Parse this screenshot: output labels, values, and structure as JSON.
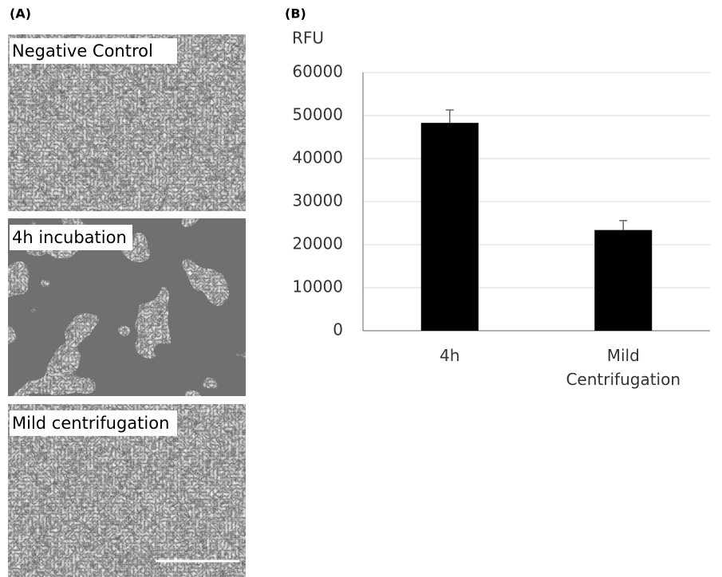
{
  "panel_a": {
    "label": "(A)",
    "images": [
      "Negative Control",
      "4h incubation",
      "Mild centrifugation"
    ]
  },
  "panel_b": {
    "label": "(B)"
  },
  "chart_data": {
    "type": "bar",
    "y_label": "RFU",
    "categories": [
      "4h",
      "Mild Centrifugation"
    ],
    "values": [
      48300,
      23400
    ],
    "errors": [
      3000,
      2200
    ],
    "color": "#000000",
    "ylim": [
      0,
      60000
    ],
    "yticks": [
      0,
      10000,
      20000,
      30000,
      40000,
      50000,
      60000
    ],
    "grid": true
  }
}
